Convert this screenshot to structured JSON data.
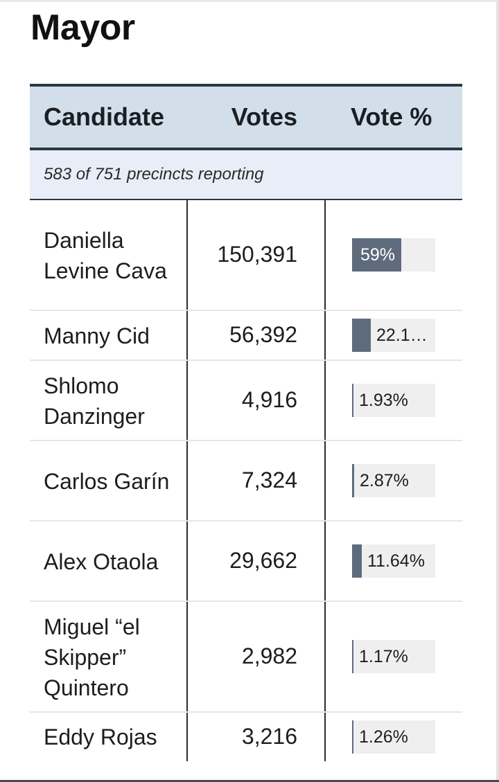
{
  "race": {
    "title": "Mayor"
  },
  "table": {
    "headers": {
      "candidate": "Candidate",
      "votes": "Votes",
      "percent": "Vote %"
    },
    "precincts_text": "583 of 751 precincts reporting",
    "rows": [
      {
        "candidate": "Daniella Levine Cava",
        "votes": "150,391",
        "percent_label": "59%",
        "percent_value": 59.0
      },
      {
        "candidate": "Manny Cid",
        "votes": "56,392",
        "percent_label": "22.1…",
        "percent_value": 22.1
      },
      {
        "candidate": "Shlomo Danzinger",
        "votes": "4,916",
        "percent_label": "1.93%",
        "percent_value": 1.93
      },
      {
        "candidate": "Carlos Garín",
        "votes": "7,324",
        "percent_label": "2.87%",
        "percent_value": 2.87
      },
      {
        "candidate": "Alex Otaola",
        "votes": "29,662",
        "percent_label": "11.64%",
        "percent_value": 11.64
      },
      {
        "candidate": "Miguel “el Skipper” Quintero",
        "votes": "2,982",
        "percent_label": "1.17%",
        "percent_value": 1.17
      },
      {
        "candidate": "Eddy Rojas",
        "votes": "3,216",
        "percent_label": "1.26%",
        "percent_value": 1.26
      }
    ]
  },
  "colors": {
    "header_bg": "#d2dfeb",
    "bar_fill": "#5e6b7c",
    "bar_track": "#efefef"
  }
}
